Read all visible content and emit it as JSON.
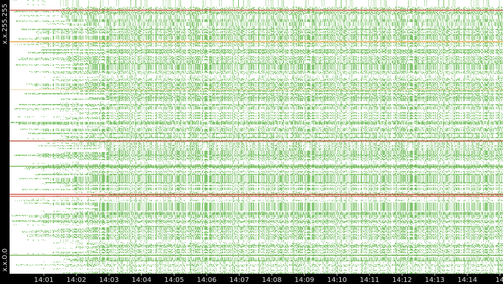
{
  "y_axis": {
    "top_label": "x.x.255.255",
    "bottom_label": "x.x.0.0"
  },
  "x_axis": {
    "labels": [
      "14:01",
      "14:02",
      "14:03",
      "14:04",
      "14:05",
      "14:06",
      "14:07",
      "14:08",
      "14:09",
      "14:10",
      "14:11",
      "14:12",
      "14:13",
      "14:14",
      "14"
    ]
  }
}
